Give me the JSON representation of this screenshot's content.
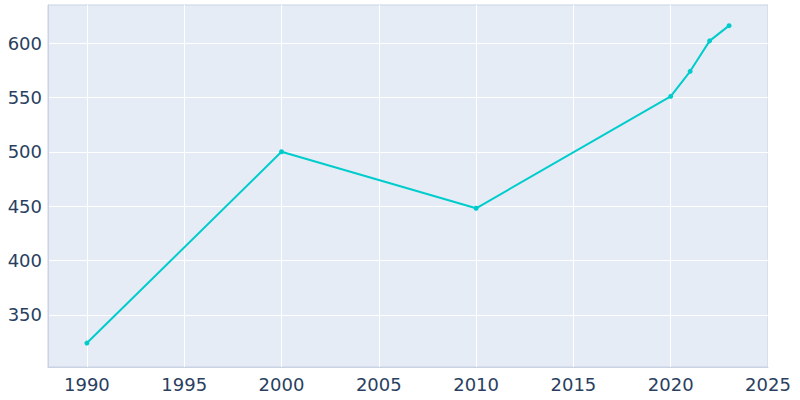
{
  "chart_data": {
    "type": "line",
    "x": [
      1990,
      2000,
      2010,
      2020,
      2021,
      2022,
      2023
    ],
    "values": [
      324,
      500,
      448,
      551,
      574,
      602,
      616
    ],
    "color": "#00cccc",
    "marker": "circle",
    "xlim": [
      1988,
      2025
    ],
    "xticks": [
      1990,
      1995,
      2000,
      2005,
      2010,
      2015,
      2020,
      2025
    ],
    "ylim": [
      302,
      635
    ],
    "yticks": [
      350,
      400,
      450,
      500,
      550,
      600
    ],
    "grid": true
  }
}
